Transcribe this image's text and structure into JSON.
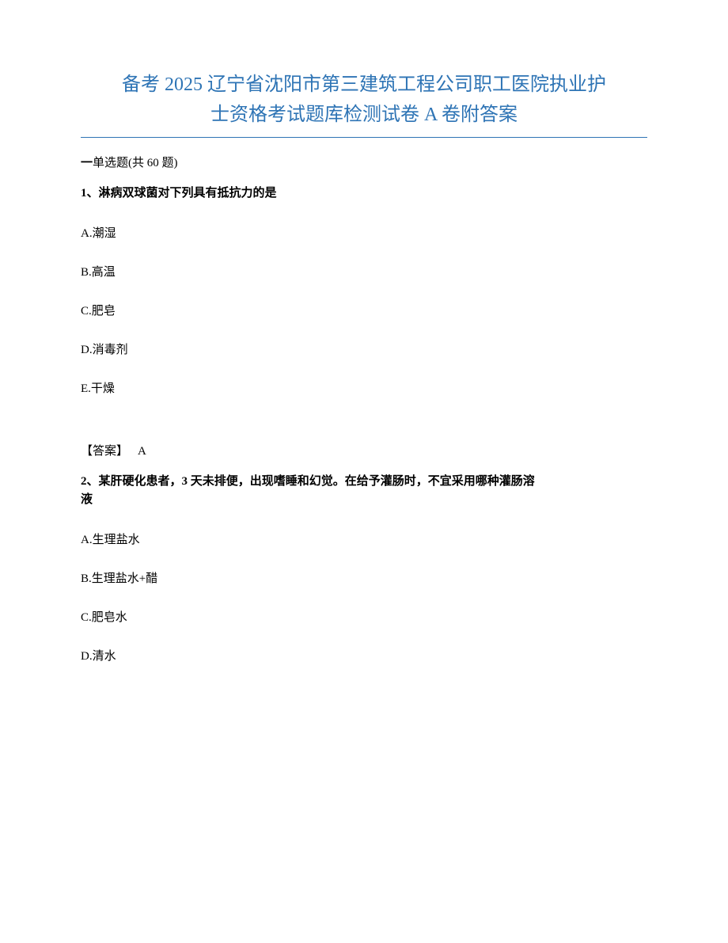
{
  "title_line1": "备考 2025 辽宁省沈阳市第三建筑工程公司职工医院执业护",
  "title_line2": "士资格考试题库检测试卷 A 卷附答案",
  "section_prefix": "一",
  "section_label": "单选题(共 60 题)",
  "q1": {
    "number": "1、",
    "text": "淋病双球菌对下列具有抵抗力的是",
    "options": {
      "a": "A.潮湿",
      "b": "B.高温",
      "c": "C.肥皂",
      "d": "D.消毒剂",
      "e": "E.干燥"
    },
    "answer_label": "【答案】",
    "answer_value": "A"
  },
  "q2": {
    "number": "2、",
    "text_part1": "某肝硬化患者，3 天未排便，出现嗜睡和幻觉。在给予灌肠时，不宜采用哪种灌肠溶",
    "text_part2": "液",
    "options": {
      "a": "A.生理盐水",
      "b": "B.生理盐水+醋",
      "c": "C.肥皂水",
      "d": "D.清水"
    }
  }
}
